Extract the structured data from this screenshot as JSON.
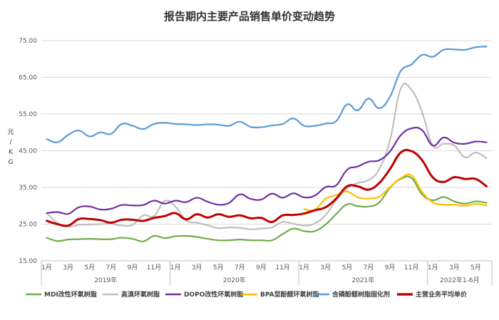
{
  "chart_data": {
    "type": "line",
    "title": "报告期内主要产品销售单价变动趋势",
    "ylabel": "元/KG",
    "ylim": [
      15,
      75
    ],
    "yticks": [
      15,
      25,
      35,
      45,
      55,
      65,
      75
    ],
    "ytick_labels": [
      "15.00",
      "25.00",
      "35.00",
      "45.00",
      "55.00",
      "65.00",
      "75.00"
    ],
    "grid": true,
    "legend_position": "bottom",
    "x": [
      "2019-01",
      "2019-02",
      "2019-03",
      "2019-04",
      "2019-05",
      "2019-06",
      "2019-07",
      "2019-08",
      "2019-09",
      "2019-10",
      "2019-11",
      "2019-12",
      "2020-01",
      "2020-02",
      "2020-03",
      "2020-04",
      "2020-05",
      "2020-06",
      "2020-07",
      "2020-08",
      "2020-09",
      "2020-10",
      "2020-11",
      "2020-12",
      "2021-01",
      "2021-02",
      "2021-03",
      "2021-04",
      "2021-05",
      "2021-06",
      "2021-07",
      "2021-08",
      "2021-09",
      "2021-10",
      "2021-11",
      "2021-12",
      "2022-01",
      "2022-02",
      "2022-03",
      "2022-04",
      "2022-05",
      "2022-06"
    ],
    "month_labels": [
      {
        "index": 0,
        "text": "1月"
      },
      {
        "index": 2,
        "text": "3月"
      },
      {
        "index": 4,
        "text": "5月"
      },
      {
        "index": 6,
        "text": "7月"
      },
      {
        "index": 8,
        "text": "9月"
      },
      {
        "index": 10,
        "text": "11月"
      },
      {
        "index": 12,
        "text": "1月"
      },
      {
        "index": 14,
        "text": "3月"
      },
      {
        "index": 16,
        "text": "5月"
      },
      {
        "index": 18,
        "text": "7月"
      },
      {
        "index": 20,
        "text": "9月"
      },
      {
        "index": 22,
        "text": "11月"
      },
      {
        "index": 24,
        "text": "1月"
      },
      {
        "index": 26,
        "text": "3月"
      },
      {
        "index": 28,
        "text": "5月"
      },
      {
        "index": 30,
        "text": "7月"
      },
      {
        "index": 32,
        "text": "9月"
      },
      {
        "index": 34,
        "text": "11月"
      },
      {
        "index": 36,
        "text": "1月"
      },
      {
        "index": 38,
        "text": "3月"
      },
      {
        "index": 40,
        "text": "5月"
      }
    ],
    "groups": [
      {
        "label": "2019年",
        "start": 0,
        "end": 11
      },
      {
        "label": "2020年",
        "start": 12,
        "end": 23
      },
      {
        "label": "2021年",
        "start": 24,
        "end": 35
      },
      {
        "label": "2022年1-6月",
        "start": 36,
        "end": 41
      }
    ],
    "series": [
      {
        "name": "MDI改性环氧树脂",
        "color": "#70AD47",
        "values": [
          21.3,
          20.4,
          20.8,
          20.9,
          21.0,
          20.9,
          20.9,
          21.3,
          21.0,
          20.3,
          21.8,
          21.2,
          21.7,
          21.8,
          21.5,
          21.0,
          20.6,
          20.6,
          20.8,
          20.6,
          20.6,
          20.6,
          22.3,
          23.8,
          23.1,
          23.1,
          24.9,
          27.8,
          30.4,
          29.9,
          29.8,
          30.9,
          34.9,
          37.3,
          37.6,
          33.1,
          31.5,
          32.4,
          31.2,
          30.6,
          31.2,
          30.8
        ]
      },
      {
        "name": "高溴环氧树脂",
        "color": "#BFBFBF",
        "values": [
          28.0,
          25.3,
          24.3,
          24.8,
          24.9,
          25.0,
          25.1,
          24.6,
          24.8,
          27.4,
          27.2,
          31.3,
          29.8,
          26.0,
          25.4,
          24.7,
          23.9,
          24.1,
          24.0,
          23.6,
          23.8,
          24.1,
          25.6,
          25.1,
          24.6,
          25.2,
          27.5,
          31.6,
          34.8,
          36.2,
          37.0,
          40.0,
          47.8,
          61.9,
          61.6,
          55.5,
          46.4,
          46.9,
          46.4,
          43.2,
          44.5,
          43.0
        ]
      },
      {
        "name": "DOPO改性环氧树脂",
        "color": "#7030A0",
        "values": [
          28.0,
          28.3,
          27.8,
          29.6,
          29.8,
          29.0,
          29.2,
          30.2,
          30.1,
          30.2,
          31.4,
          30.6,
          31.4,
          31.0,
          32.2,
          31.1,
          30.3,
          30.8,
          33.1,
          31.9,
          31.7,
          33.3,
          32.2,
          33.4,
          32.3,
          32.8,
          35.1,
          35.6,
          39.8,
          40.7,
          42.0,
          42.4,
          44.8,
          49.2,
          51.1,
          50.6,
          46.4,
          48.6,
          47.2,
          46.9,
          47.5,
          47.3
        ]
      },
      {
        "name": "BPA型酚醛环氧树脂",
        "color": "#FFC000",
        "values": [
          null,
          null,
          null,
          null,
          null,
          null,
          null,
          null,
          null,
          null,
          null,
          null,
          null,
          null,
          null,
          null,
          null,
          null,
          null,
          null,
          null,
          null,
          null,
          null,
          29.1,
          28.9,
          31.9,
          32.9,
          33.9,
          32.3,
          32.0,
          32.5,
          35.1,
          37.5,
          38.3,
          33.8,
          30.9,
          30.3,
          30.3,
          30.0,
          30.5,
          30.1
        ]
      },
      {
        "name": "含磷酚醛树脂固化剂",
        "color": "#5B9BD5",
        "values": [
          48.2,
          47.3,
          49.3,
          50.5,
          48.9,
          50.0,
          49.6,
          52.3,
          51.8,
          50.9,
          52.3,
          52.6,
          52.3,
          52.2,
          52.0,
          52.2,
          52.1,
          51.8,
          52.9,
          51.5,
          51.4,
          51.9,
          52.3,
          53.8,
          51.8,
          51.8,
          52.4,
          53.1,
          57.6,
          56.0,
          59.2,
          56.6,
          59.7,
          66.7,
          68.5,
          71.1,
          70.6,
          72.5,
          72.6,
          72.5,
          73.2,
          73.4
        ]
      },
      {
        "name": "主营业务平均单价",
        "color": "#C00000",
        "values": [
          25.9,
          25.0,
          24.6,
          26.4,
          26.4,
          26.1,
          25.4,
          26.2,
          26.2,
          25.9,
          26.7,
          27.2,
          28.0,
          26.3,
          27.7,
          26.8,
          27.7,
          27.0,
          27.4,
          26.6,
          26.7,
          25.6,
          27.4,
          27.5,
          27.9,
          28.8,
          29.6,
          32.0,
          35.3,
          35.3,
          34.4,
          36.2,
          40.0,
          44.5,
          44.9,
          42.4,
          37.7,
          36.5,
          37.8,
          37.3,
          37.3,
          35.3
        ]
      }
    ]
  }
}
